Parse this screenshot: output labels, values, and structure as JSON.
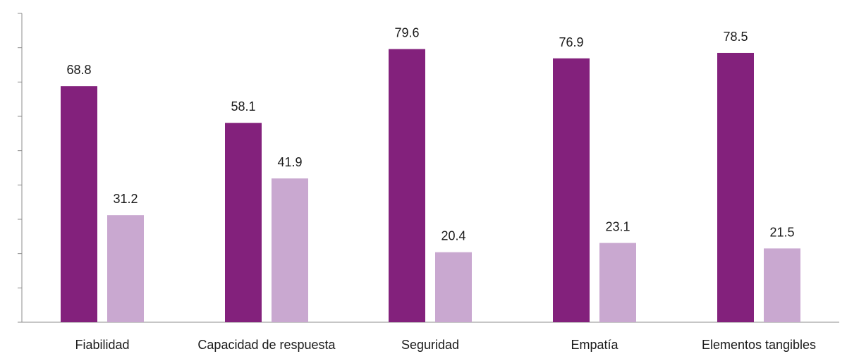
{
  "chart_data": {
    "type": "bar",
    "categories": [
      "Fiabilidad",
      "Capacidad de respuesta",
      "Seguridad",
      "Empatía",
      "Elementos tangibles"
    ],
    "series": [
      {
        "values": [
          68.8,
          58.1,
          79.6,
          76.9,
          78.5
        ],
        "color": "#83217c"
      },
      {
        "values": [
          31.2,
          41.9,
          20.4,
          23.1,
          21.5
        ],
        "color": "#c9a8d0"
      }
    ],
    "ylim": [
      0,
      90
    ],
    "y_ticks": [
      0,
      10,
      20,
      30,
      40,
      50,
      60,
      70,
      80,
      90
    ],
    "y_tick_labels_shown": false,
    "grid": false,
    "legend": "none"
  }
}
